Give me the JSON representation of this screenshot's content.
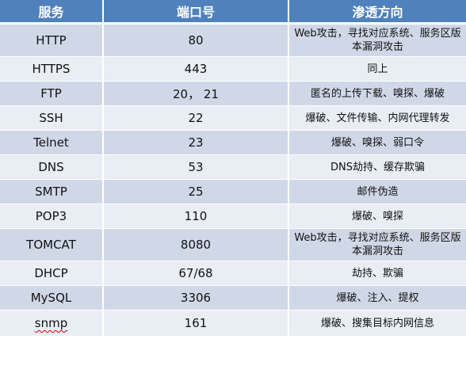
{
  "headers": {
    "service": "服务",
    "port": "端口号",
    "attack": "渗透方向"
  },
  "rows": [
    {
      "service": "HTTP",
      "port": "80",
      "attack": "Web攻击，寻找对应系统、服务区版本漏洞攻击"
    },
    {
      "service": "HTTPS",
      "port": "443",
      "attack": "同上"
    },
    {
      "service": "FTP",
      "port": "20， 21",
      "attack": "匿名的上传下载、嗅探、爆破"
    },
    {
      "service": "SSH",
      "port": "22",
      "attack": "爆破、文件传输、内网代理转发"
    },
    {
      "service": "Telnet",
      "port": "23",
      "attack": "爆破、嗅探、弱口令"
    },
    {
      "service": "DNS",
      "port": "53",
      "attack": "DNS劫持、缓存欺骗"
    },
    {
      "service": "SMTP",
      "port": "25",
      "attack": "邮件伪造"
    },
    {
      "service": "POP3",
      "port": "110",
      "attack": "爆破、嗅探"
    },
    {
      "service": "TOMCAT",
      "port": "8080",
      "attack": "Web攻击，寻找对应系统、服务区版本漏洞攻击"
    },
    {
      "service": "DHCP",
      "port": "67/68",
      "attack": "劫持、欺骗"
    },
    {
      "service": "MySQL",
      "port": "3306",
      "attack": "爆破、注入、提权"
    },
    {
      "service": "snmp",
      "port": "161",
      "attack": "爆破、搜集目标内网信息"
    }
  ]
}
